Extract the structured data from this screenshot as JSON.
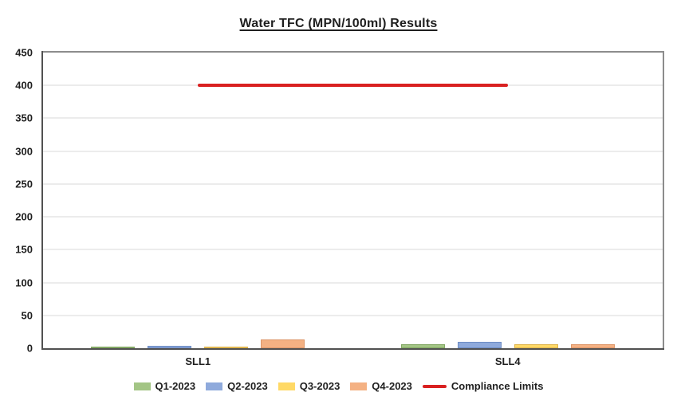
{
  "chart_data": {
    "type": "bar",
    "title": "Water TFC (MPN/100ml) Results",
    "categories": [
      "SLL1",
      "SLL4"
    ],
    "series": [
      {
        "name": "Q1-2023",
        "values": [
          2,
          6
        ],
        "color": "#a3c585",
        "border_color": "#82a763"
      },
      {
        "name": "Q2-2023",
        "values": [
          4,
          10
        ],
        "color": "#8faadc",
        "border_color": "#6d8cc4"
      },
      {
        "name": "Q3-2023",
        "values": [
          2,
          6
        ],
        "color": "#ffd966",
        "border_color": "#dfb54e"
      },
      {
        "name": "Q4-2023",
        "values": [
          13,
          6
        ],
        "color": "#f4b183",
        "border_color": "#dd9668"
      }
    ],
    "compliance_line": {
      "name": "Compliance Limits",
      "value": 400,
      "color": "#d92121"
    },
    "ylim": [
      0,
      450
    ],
    "ytick_labels": [
      "0",
      "50",
      "100",
      "150",
      "200",
      "250",
      "300",
      "350",
      "400",
      "450"
    ],
    "grid": true,
    "legend_position": "bottom"
  }
}
